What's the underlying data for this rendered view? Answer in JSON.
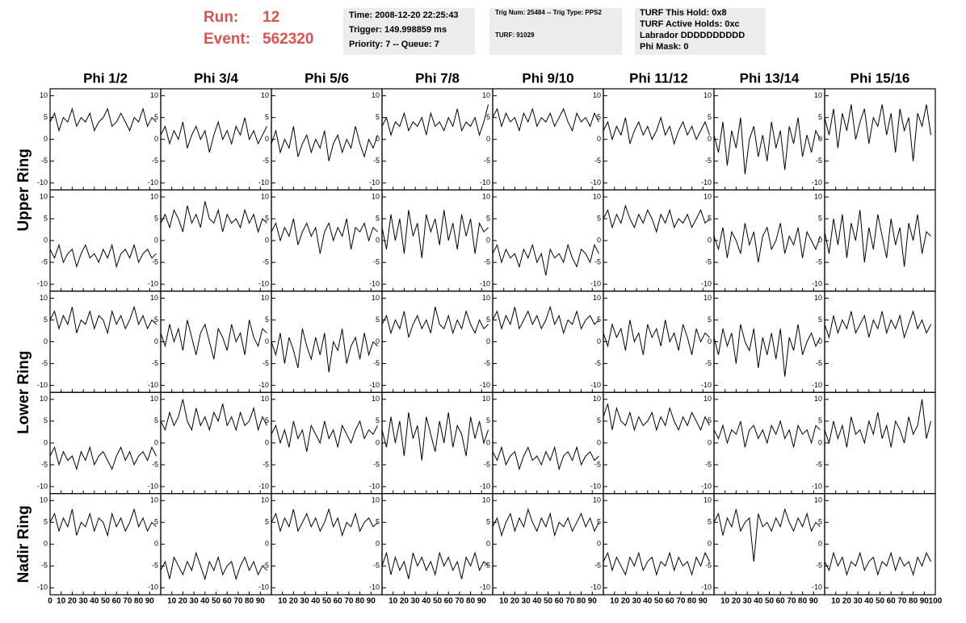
{
  "header": {
    "run_label": "Run:",
    "run": "12",
    "event_label": "Event:",
    "event": "562320",
    "info_1": [
      "Time: 2008-12-20 22:25:43",
      "Trigger: 149.998859 ms",
      "Priority: 7 -- Queue: 7"
    ],
    "info_2": [
      "Trig Num: 25484 -- Trig Type: PPS2",
      "TURF: 91029"
    ],
    "info_3": [
      "TURF This Hold: 0x8",
      "TURF Active Holds: 0xc",
      "Labrador DDDDDDDDDD",
      "Phi Mask: 0"
    ]
  },
  "chart_data": {
    "type": "line",
    "color": "#000000",
    "columns": [
      "Phi 1/2",
      "Phi 3/4",
      "Phi 5/6",
      "Phi 7/8",
      "Phi 9/10",
      "Phi 11/12",
      "Phi 13/14",
      "Phi 15/16"
    ],
    "rings": [
      "Upper Ring",
      "Lower Ring",
      "Nadir Ring"
    ],
    "x": [
      0,
      4,
      8,
      12,
      16,
      20,
      24,
      28,
      32,
      36,
      40,
      44,
      48,
      52,
      56,
      60,
      64,
      68,
      72,
      76,
      80,
      84,
      88,
      92,
      96
    ],
    "xlim": [
      0,
      100
    ],
    "xticks": [
      0,
      10,
      20,
      30,
      40,
      50,
      60,
      70,
      80,
      90,
      100
    ],
    "ylim": [
      -11.6,
      11.6
    ],
    "yticks": [
      -10,
      -5,
      0,
      5,
      10
    ],
    "panels": [
      [
        [
          4,
          6,
          2,
          5,
          4,
          7,
          3,
          5,
          4,
          6,
          2,
          4,
          5,
          7,
          3,
          4,
          6,
          4,
          2,
          5,
          4,
          7,
          3,
          5,
          4
        ],
        [
          1,
          3,
          -1,
          2,
          0,
          4,
          -2,
          1,
          3,
          0,
          2,
          -3,
          1,
          4,
          0,
          2,
          -1,
          3,
          1,
          5,
          0,
          2,
          -1,
          1,
          3
        ],
        [
          -1,
          2,
          -3,
          0,
          -2,
          3,
          -4,
          -1,
          1,
          -3,
          0,
          -2,
          2,
          -5,
          -1,
          1,
          -3,
          0,
          -2,
          3,
          -1,
          -4,
          0,
          -2,
          1
        ],
        [
          3,
          5,
          1,
          4,
          3,
          6,
          2,
          4,
          3,
          5,
          1,
          6,
          3,
          4,
          2,
          5,
          3,
          7,
          2,
          4,
          3,
          5,
          1,
          4,
          8
        ],
        [
          5,
          7,
          3,
          6,
          4,
          5,
          2,
          6,
          4,
          7,
          3,
          5,
          4,
          6,
          3,
          5,
          7,
          4,
          2,
          6,
          4,
          5,
          3,
          6,
          4
        ],
        [
          2,
          4,
          0,
          3,
          1,
          5,
          -1,
          2,
          4,
          1,
          3,
          0,
          2,
          5,
          1,
          3,
          -1,
          2,
          4,
          1,
          3,
          0,
          2,
          4,
          1
        ],
        [
          1,
          -3,
          4,
          -6,
          2,
          -2,
          5,
          -8,
          0,
          3,
          -4,
          1,
          -5,
          4,
          -2,
          2,
          -7,
          3,
          -1,
          5,
          -4,
          1,
          -3,
          2,
          0
        ],
        [
          5,
          1,
          7,
          -2,
          6,
          2,
          8,
          0,
          4,
          7,
          -1,
          5,
          3,
          8,
          1,
          6,
          -3,
          7,
          2,
          5,
          -5,
          6,
          3,
          8,
          1
        ]
      ],
      [
        [
          -2,
          -4,
          -1,
          -5,
          -3,
          -2,
          -6,
          -3,
          -1,
          -4,
          -3,
          -5,
          -2,
          -4,
          -1,
          -6,
          -3,
          -2,
          -4,
          -1,
          -5,
          -3,
          -2,
          -4,
          -3
        ],
        [
          4,
          6,
          3,
          7,
          5,
          2,
          8,
          4,
          6,
          3,
          9,
          5,
          4,
          7,
          2,
          6,
          4,
          5,
          3,
          7,
          4,
          6,
          2,
          5,
          4
        ],
        [
          2,
          4,
          0,
          3,
          1,
          5,
          -1,
          2,
          4,
          1,
          3,
          -3,
          2,
          4,
          0,
          3,
          1,
          5,
          -2,
          3,
          2,
          4,
          0,
          3,
          2
        ],
        [
          3,
          -2,
          6,
          0,
          5,
          -3,
          7,
          1,
          4,
          -4,
          6,
          2,
          5,
          -1,
          7,
          0,
          4,
          -2,
          6,
          1,
          5,
          -3,
          4,
          2,
          3
        ],
        [
          -3,
          -1,
          -5,
          -2,
          -4,
          -3,
          -6,
          -2,
          -4,
          -1,
          -5,
          -3,
          -8,
          -2,
          -4,
          -3,
          -5,
          -1,
          -4,
          -6,
          -2,
          -3,
          -5,
          -1,
          -3
        ],
        [
          5,
          7,
          3,
          6,
          4,
          8,
          5,
          3,
          6,
          4,
          7,
          5,
          2,
          6,
          4,
          7,
          3,
          5,
          4,
          6,
          3,
          5,
          7,
          4,
          5
        ],
        [
          1,
          -2,
          3,
          -4,
          2,
          0,
          -3,
          4,
          -1,
          2,
          -5,
          1,
          3,
          -2,
          0,
          4,
          -3,
          1,
          -1,
          3,
          -4,
          2,
          0,
          -2,
          1
        ],
        [
          2,
          -3,
          5,
          -1,
          6,
          -4,
          4,
          0,
          7,
          -5,
          3,
          -2,
          6,
          1,
          -4,
          5,
          -1,
          3,
          -6,
          4,
          0,
          6,
          -3,
          2,
          1
        ]
      ],
      [
        [
          5,
          7,
          3,
          6,
          4,
          8,
          2,
          5,
          4,
          7,
          3,
          6,
          5,
          2,
          7,
          4,
          6,
          3,
          5,
          8,
          4,
          6,
          3,
          5,
          4
        ],
        [
          2,
          -1,
          4,
          0,
          3,
          -2,
          5,
          1,
          -3,
          2,
          4,
          0,
          -4,
          3,
          1,
          -2,
          4,
          0,
          2,
          -3,
          5,
          1,
          -1,
          3,
          2
        ],
        [
          0,
          -3,
          2,
          -5,
          1,
          -2,
          -6,
          3,
          -1,
          -4,
          1,
          -3,
          2,
          -7,
          0,
          -2,
          3,
          -5,
          -1,
          1,
          -4,
          2,
          -3,
          0,
          -1
        ],
        [
          4,
          6,
          2,
          5,
          3,
          7,
          1,
          4,
          6,
          3,
          5,
          2,
          8,
          4,
          3,
          6,
          2,
          5,
          3,
          7,
          4,
          2,
          5,
          3,
          4
        ],
        [
          5,
          7,
          3,
          6,
          4,
          8,
          3,
          5,
          7,
          4,
          6,
          3,
          5,
          8,
          4,
          6,
          2,
          5,
          4,
          7,
          3,
          5,
          6,
          4,
          5
        ],
        [
          2,
          -1,
          4,
          1,
          3,
          -2,
          5,
          0,
          2,
          -3,
          4,
          1,
          3,
          -1,
          5,
          0,
          2,
          -2,
          4,
          1,
          -3,
          3,
          0,
          2,
          1
        ],
        [
          1,
          -3,
          3,
          -1,
          2,
          -5,
          4,
          0,
          -2,
          3,
          -6,
          1,
          -3,
          2,
          -4,
          3,
          -8,
          1,
          -2,
          4,
          -3,
          0,
          2,
          -1,
          1
        ],
        [
          4,
          1,
          6,
          2,
          5,
          3,
          7,
          2,
          4,
          6,
          1,
          5,
          3,
          7,
          2,
          5,
          3,
          6,
          1,
          4,
          7,
          3,
          5,
          2,
          4
        ]
      ],
      [
        [
          -3,
          -1,
          -5,
          -2,
          -4,
          -3,
          -6,
          -2,
          -4,
          -1,
          -5,
          -3,
          -2,
          -4,
          -6,
          -3,
          -1,
          -4,
          -2,
          -5,
          -3,
          -2,
          -4,
          -1,
          -3
        ],
        [
          5,
          3,
          7,
          4,
          6,
          10,
          5,
          3,
          8,
          4,
          6,
          3,
          7,
          5,
          9,
          4,
          6,
          3,
          7,
          4,
          5,
          8,
          3,
          6,
          4
        ],
        [
          2,
          4,
          0,
          3,
          -1,
          5,
          1,
          3,
          -2,
          4,
          2,
          0,
          5,
          1,
          3,
          -1,
          4,
          2,
          0,
          3,
          5,
          1,
          3,
          2,
          4
        ],
        [
          3,
          -1,
          6,
          0,
          5,
          -3,
          7,
          1,
          4,
          -4,
          6,
          2,
          -2,
          5,
          0,
          7,
          -1,
          4,
          2,
          -3,
          6,
          1,
          5,
          0,
          3
        ],
        [
          -2,
          -4,
          -1,
          -5,
          -3,
          -2,
          -6,
          -3,
          -1,
          -4,
          -3,
          -5,
          -2,
          -4,
          -1,
          -6,
          -3,
          -2,
          -4,
          -1,
          -5,
          -3,
          -2,
          -4,
          -3
        ],
        [
          6,
          9,
          3,
          8,
          5,
          4,
          7,
          3,
          6,
          4,
          5,
          7,
          3,
          6,
          4,
          8,
          5,
          3,
          6,
          4,
          7,
          5,
          3,
          6,
          4
        ],
        [
          3,
          1,
          4,
          0,
          3,
          2,
          5,
          -1,
          3,
          4,
          1,
          3,
          0,
          4,
          2,
          5,
          1,
          3,
          -1,
          4,
          2,
          3,
          0,
          4,
          3
        ],
        [
          3,
          0,
          5,
          1,
          4,
          -1,
          6,
          2,
          3,
          0,
          5,
          2,
          7,
          1,
          4,
          -1,
          5,
          3,
          0,
          6,
          2,
          4,
          10,
          1,
          5
        ]
      ],
      [
        [
          5,
          7,
          3,
          6,
          4,
          8,
          2,
          5,
          4,
          7,
          3,
          6,
          5,
          2,
          7,
          4,
          6,
          3,
          5,
          8,
          4,
          6,
          3,
          5,
          4
        ],
        [
          -6,
          -4,
          -8,
          -3,
          -5,
          -7,
          -4,
          -6,
          -2,
          -5,
          -8,
          -4,
          -6,
          -3,
          -7,
          -5,
          -4,
          -8,
          -5,
          -3,
          -6,
          -4,
          -7,
          -5,
          -6
        ],
        [
          5,
          7,
          3,
          6,
          4,
          8,
          3,
          5,
          7,
          4,
          6,
          3,
          5,
          8,
          4,
          6,
          2,
          5,
          4,
          7,
          3,
          5,
          6,
          4,
          5
        ],
        [
          -5,
          -2,
          -7,
          -3,
          -6,
          -4,
          -8,
          -2,
          -5,
          -3,
          -6,
          -4,
          -7,
          -2,
          -5,
          -3,
          -6,
          -4,
          -8,
          -3,
          -5,
          -2,
          -6,
          -4,
          -5
        ],
        [
          4,
          6,
          2,
          5,
          7,
          3,
          6,
          4,
          8,
          5,
          3,
          6,
          4,
          7,
          2,
          5,
          4,
          6,
          3,
          5,
          7,
          4,
          6,
          3,
          5
        ],
        [
          -4,
          -2,
          -6,
          -3,
          -5,
          -7,
          -3,
          -5,
          -2,
          -6,
          -4,
          -3,
          -7,
          -4,
          -5,
          -2,
          -6,
          -3,
          -5,
          -4,
          -7,
          -3,
          -5,
          -2,
          -4
        ],
        [
          5,
          7,
          2,
          6,
          4,
          8,
          3,
          5,
          6,
          -4,
          7,
          4,
          5,
          3,
          6,
          4,
          8,
          5,
          3,
          6,
          4,
          7,
          3,
          5,
          4
        ],
        [
          -4,
          -6,
          -2,
          -5,
          -3,
          -7,
          -4,
          -5,
          -2,
          -6,
          -4,
          -3,
          -7,
          -4,
          -5,
          -2,
          -6,
          -3,
          -5,
          -4,
          -7,
          -3,
          -5,
          -2,
          -4
        ]
      ]
    ]
  }
}
